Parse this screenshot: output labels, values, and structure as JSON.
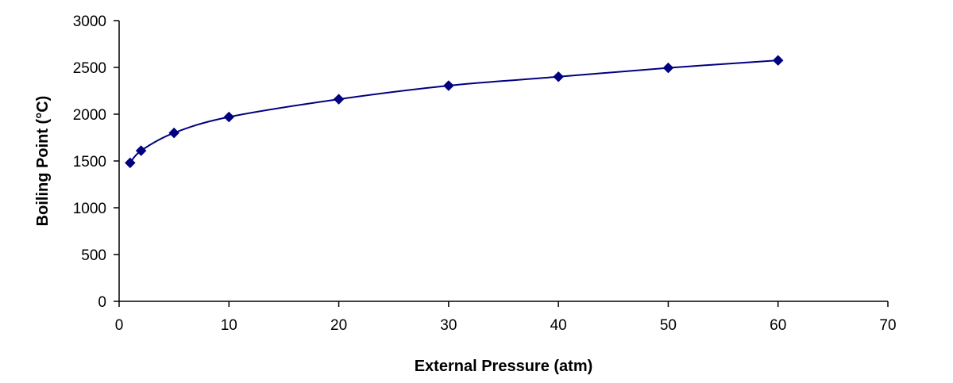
{
  "chart_data": {
    "type": "line",
    "title": "",
    "xlabel": "External Pressure (atm)",
    "ylabel": "Boiling Point (°C)",
    "xlim": [
      0,
      70
    ],
    "ylim": [
      0,
      3000
    ],
    "x_ticks": [
      0,
      10,
      20,
      30,
      40,
      50,
      60,
      70
    ],
    "y_ticks": [
      0,
      500,
      1000,
      1500,
      2000,
      2500,
      3000
    ],
    "grid": false,
    "legend": "none",
    "series": [
      {
        "x": [
          1,
          2,
          5,
          10,
          20,
          30,
          40,
          50,
          60
        ],
        "y": [
          1480,
          1610,
          1800,
          1970,
          2160,
          2305,
          2400,
          2495,
          2575
        ],
        "color": "#000080",
        "marker": "diamond",
        "smooth": true
      }
    ]
  }
}
